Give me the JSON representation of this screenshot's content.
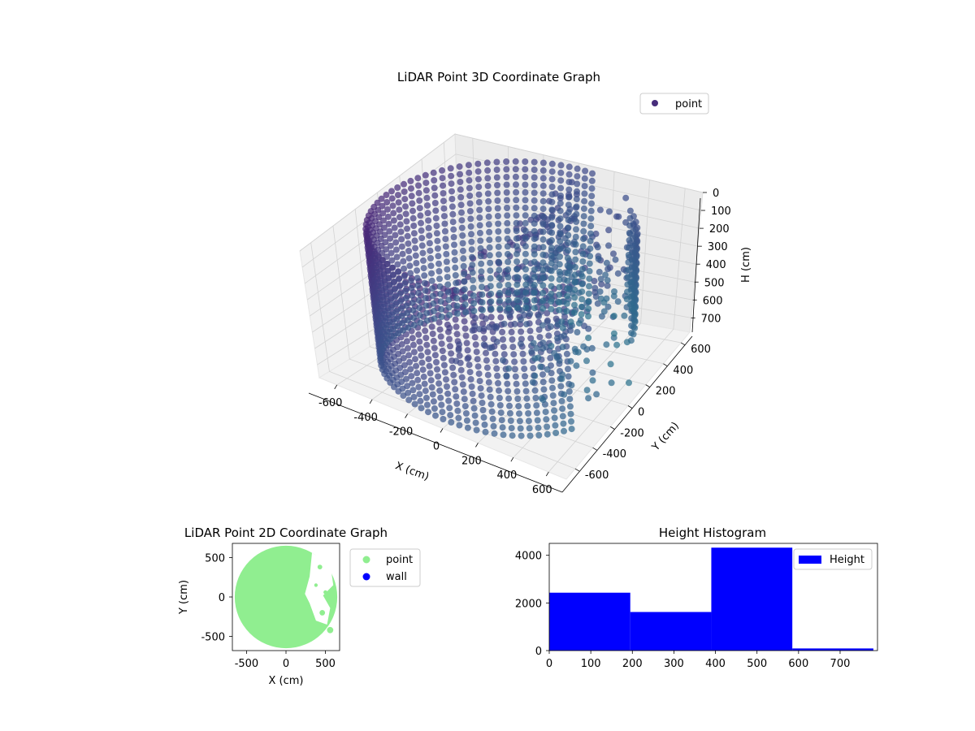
{
  "chart_data": [
    {
      "type": "scatter",
      "projection": "3d",
      "title": "LiDAR Point 3D Coordinate Graph",
      "xlabel": "X (cm)",
      "ylabel": "Y (cm)",
      "zlabel": "H (cm)",
      "xlim": [
        -700,
        700
      ],
      "ylim": [
        -700,
        700
      ],
      "zlim": [
        0,
        780
      ],
      "xticks": [
        -600,
        -400,
        -200,
        0,
        200,
        400,
        600
      ],
      "yticks": [
        -600,
        -400,
        -200,
        0,
        200,
        400,
        600
      ],
      "zticks": [
        0,
        100,
        200,
        300,
        400,
        500,
        600,
        700
      ],
      "z_inverted": true,
      "grid": true,
      "colormap": "viridis",
      "legend": {
        "entries": [
          "point"
        ],
        "placement": "top-right"
      },
      "series": [
        {
          "name": "point",
          "structure": "cylindrical wall of points",
          "radius": 650,
          "height_range": [
            0,
            780
          ],
          "vertical_step": 40,
          "wall_arc_deg": [
            80,
            330
          ],
          "scattered_region": "interior points toward +X / +Y side",
          "color": "#472d7b"
        }
      ]
    },
    {
      "type": "scatter",
      "title": "LiDAR Point 2D Coordinate Graph",
      "xlabel": "X (cm)",
      "ylabel": "Y (cm)",
      "xlim": [
        -680,
        680
      ],
      "ylim": [
        -680,
        680
      ],
      "xticks": [
        -500,
        0,
        500
      ],
      "yticks": [
        -500,
        0,
        500
      ],
      "legend": {
        "entries": [
          "point",
          "wall"
        ],
        "placement": "outside right"
      },
      "series": [
        {
          "name": "point",
          "color": "#90ee90",
          "region": "filled disk, radius 650"
        },
        {
          "name": "wall",
          "color": "#0000ff"
        }
      ]
    },
    {
      "type": "bar",
      "subtype": "histogram",
      "title": "Height Histogram",
      "xlim": [
        0,
        790
      ],
      "ylim": [
        0,
        4500
      ],
      "xticks": [
        0,
        100,
        200,
        300,
        400,
        500,
        600,
        700
      ],
      "yticks": [
        0,
        2000,
        4000
      ],
      "legend": {
        "entries": [
          "Height"
        ],
        "placement": "top-right"
      },
      "bins": [
        {
          "x0": 0,
          "x1": 195,
          "count": 2430
        },
        {
          "x0": 195,
          "x1": 390,
          "count": 1620
        },
        {
          "x0": 390,
          "x1": 585,
          "count": 4320
        },
        {
          "x0": 585,
          "x1": 780,
          "count": 90
        }
      ],
      "series": [
        {
          "name": "Height",
          "color": "#0000ff"
        }
      ]
    }
  ]
}
